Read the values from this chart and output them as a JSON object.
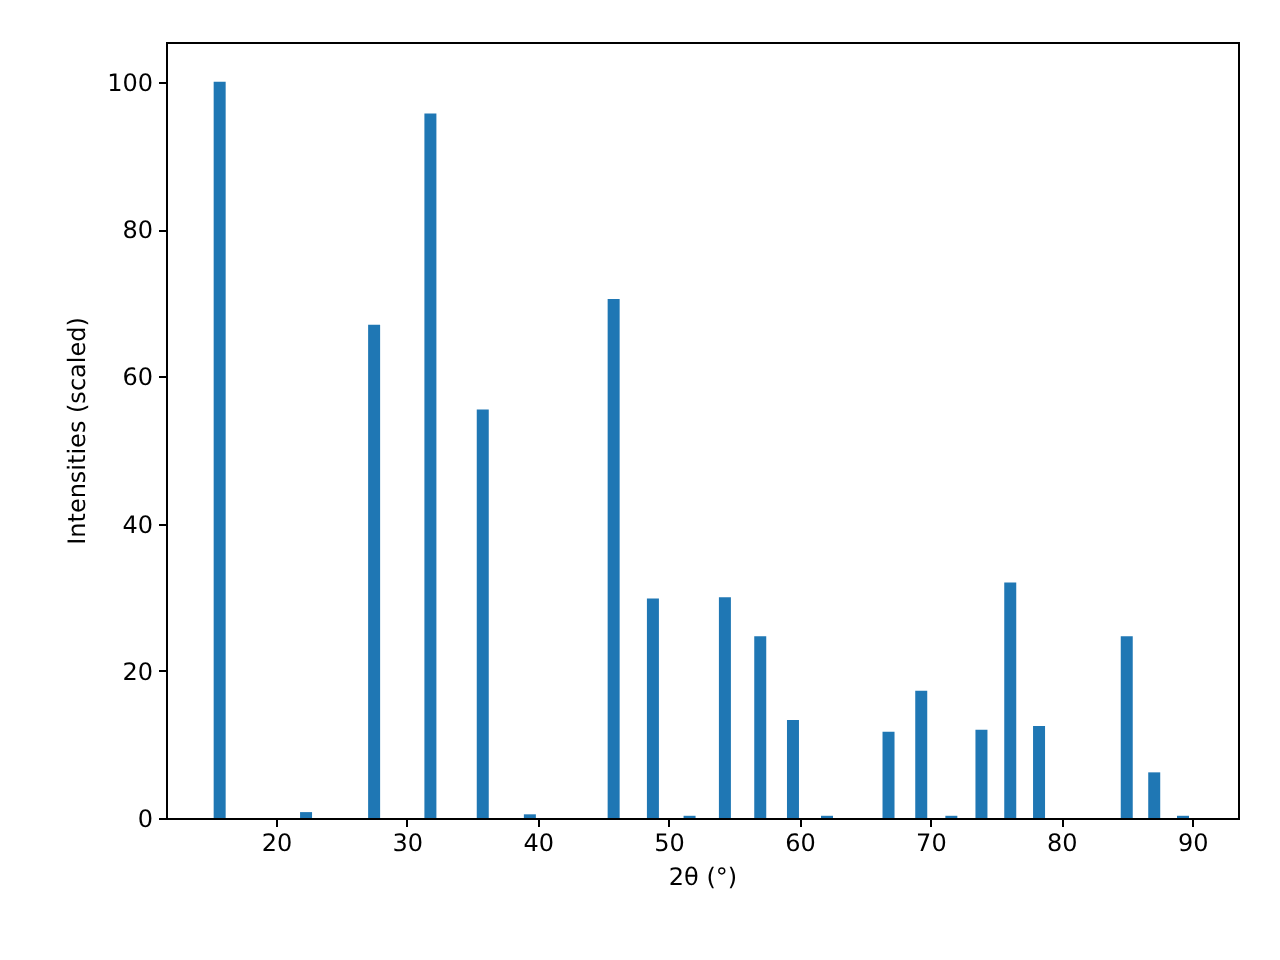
{
  "chart_data": {
    "type": "bar",
    "xlabel": "2θ (°)",
    "ylabel": "Intensities (scaled)",
    "x": [
      15.7,
      22.3,
      27.5,
      31.8,
      35.8,
      39.4,
      45.8,
      48.8,
      51.6,
      54.3,
      57.0,
      59.5,
      62.1,
      66.8,
      69.3,
      71.6,
      73.9,
      76.1,
      78.3,
      85.0,
      87.1,
      89.3
    ],
    "values": [
      100,
      0.8,
      67,
      95.7,
      55.5,
      0.5,
      70.5,
      29.8,
      0.3,
      30,
      24.7,
      13.3,
      0.3,
      11.7,
      17.3,
      0.3,
      12,
      32,
      12.5,
      24.7,
      6.2,
      0.3
    ],
    "color": "#1f77b4",
    "xlim": [
      11.6,
      93.5
    ],
    "xticks": [
      20,
      30,
      40,
      50,
      60,
      70,
      80,
      90
    ],
    "ylim": [
      0,
      105.4
    ],
    "yticks": [
      0,
      20,
      40,
      60,
      80,
      100
    ],
    "grid": false
  }
}
